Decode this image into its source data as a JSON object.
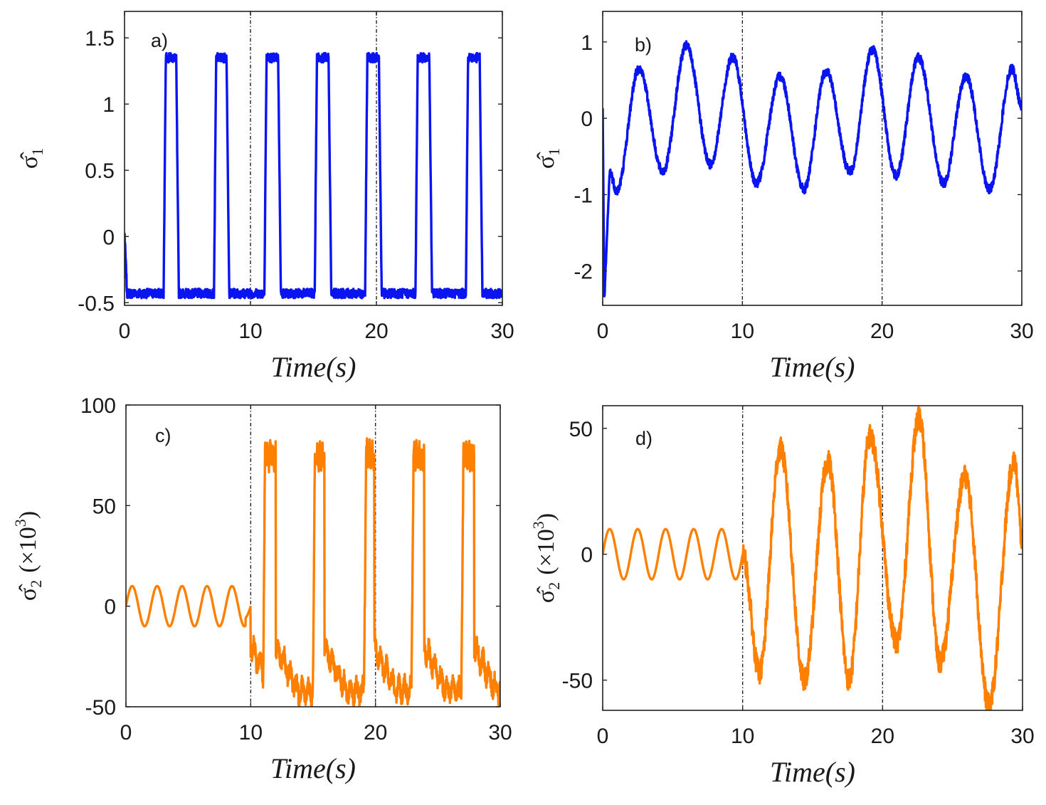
{
  "chart_data": [
    {
      "id": "a",
      "type": "line",
      "panel_label": "a)",
      "xlabel": "Time(s)",
      "ylabel": {
        "symbol": "σ̂",
        "sub": "1",
        "suffix": ""
      },
      "xlim": [
        0,
        30
      ],
      "ylim": [
        -0.52,
        1.7
      ],
      "xticks": [
        0,
        10,
        20,
        30
      ],
      "yticks": [
        -0.5,
        0,
        0.5,
        1,
        1.5
      ],
      "ytick_labels": [
        "-0.5",
        "0",
        "0.5",
        "1",
        "1.5"
      ],
      "vlines": [
        10,
        20
      ],
      "color": "#0a14f0",
      "signal": {
        "kind": "pulse",
        "base": -0.43,
        "peak": 1.35,
        "start": 0.02,
        "pulses": [
          [
            3.1,
            4.1
          ],
          [
            7.1,
            8.1
          ],
          [
            11.1,
            12.2
          ],
          [
            15.1,
            16.2
          ],
          [
            19.1,
            20.2
          ],
          [
            23.1,
            24.2
          ],
          [
            27.1,
            28.2
          ]
        ]
      },
      "series": [
        {
          "name": "σ̂1",
          "x": [
            0,
            0.2,
            3.0,
            3.2,
            4.0,
            4.2,
            7.0,
            7.2,
            8.0,
            8.2,
            11.0,
            11.2,
            12.1,
            12.3,
            15.0,
            15.2,
            16.1,
            16.3,
            19.0,
            19.2,
            20.1,
            20.3,
            23.0,
            23.2,
            24.1,
            24.3,
            27.0,
            27.2,
            28.1,
            28.3,
            30
          ],
          "y": [
            0.02,
            -0.43,
            -0.43,
            1.35,
            1.35,
            -0.43,
            -0.43,
            1.35,
            1.35,
            -0.43,
            -0.43,
            1.35,
            1.35,
            -0.43,
            -0.43,
            1.35,
            1.35,
            -0.43,
            -0.43,
            1.35,
            1.35,
            -0.43,
            -0.43,
            1.35,
            1.35,
            -0.43,
            -0.43,
            1.35,
            1.35,
            -0.43,
            -0.43
          ]
        }
      ]
    },
    {
      "id": "b",
      "type": "line",
      "panel_label": "b)",
      "xlabel": "Time(s)",
      "ylabel": {
        "symbol": "σ̂",
        "sub": "1",
        "suffix": ""
      },
      "xlim": [
        0,
        30
      ],
      "ylim": [
        -2.45,
        1.4
      ],
      "xticks": [
        0,
        10,
        20,
        30
      ],
      "yticks": [
        -2,
        -1,
        0,
        1
      ],
      "ytick_labels": [
        "-2",
        "-1",
        "0",
        "1"
      ],
      "vlines": [
        10,
        20
      ],
      "color": "#0a14f0",
      "signal": {
        "kind": "wave",
        "period": 3.35,
        "phase": 1.5,
        "peaks": [
          [
            2.6,
            0.65
          ],
          [
            6.0,
            0.95
          ],
          [
            9.3,
            0.8
          ],
          [
            12.7,
            0.55
          ],
          [
            16.0,
            0.62
          ],
          [
            19.3,
            0.9
          ],
          [
            22.6,
            0.8
          ],
          [
            26.0,
            0.55
          ],
          [
            29.3,
            0.65
          ]
        ],
        "troughs": [
          [
            4.3,
            -0.7
          ],
          [
            7.7,
            -0.6
          ],
          [
            11.0,
            -0.85
          ],
          [
            14.4,
            -0.93
          ],
          [
            17.7,
            -0.7
          ],
          [
            21.0,
            -0.75
          ],
          [
            24.4,
            -0.85
          ],
          [
            27.7,
            -0.93
          ]
        ]
      },
      "series": [
        {
          "name": "σ̂1",
          "x": [
            0,
            0.1,
            0.5,
            1.0,
            2.6,
            4.3,
            6.0,
            7.7,
            9.3,
            11.0,
            12.7,
            14.4,
            16.0,
            17.7,
            19.3,
            21.0,
            22.6,
            24.4,
            26.0,
            27.7,
            29.3,
            30
          ],
          "y": [
            0.1,
            -2.4,
            -0.7,
            -0.95,
            0.65,
            -0.7,
            0.95,
            -0.6,
            0.8,
            -0.85,
            0.55,
            -0.93,
            0.62,
            -0.7,
            0.9,
            -0.75,
            0.8,
            -0.85,
            0.55,
            -0.93,
            0.65,
            0.15
          ]
        }
      ]
    },
    {
      "id": "c",
      "type": "line",
      "panel_label": "c)",
      "xlabel": "Time(s)",
      "ylabel": {
        "symbol": "σ̂",
        "sub": "2",
        "suffix": "(×10",
        "sup": "3",
        "close": ")"
      },
      "xlim": [
        0,
        30
      ],
      "ylim": [
        -50,
        100
      ],
      "xticks": [
        0,
        10,
        20,
        30
      ],
      "yticks": [
        -50,
        0,
        50,
        100
      ],
      "ytick_labels": [
        "-50",
        "0",
        "50",
        "100"
      ],
      "vlines": [
        10,
        20
      ],
      "color": "#ff8000",
      "signal": {
        "kind": "sine_then_pulse",
        "switch": 10,
        "amp": 10,
        "period": 2.0,
        "base": -35,
        "peak": 75,
        "pulses": [
          [
            11.0,
            12.0
          ],
          [
            15.0,
            15.9
          ],
          [
            19.1,
            19.9
          ],
          [
            22.9,
            23.9
          ],
          [
            26.9,
            27.9
          ]
        ]
      },
      "series": [
        {
          "name": "σ̂2",
          "x": [
            0,
            0.5,
            1.5,
            2.5,
            3.5,
            4.5,
            5.5,
            6.5,
            7.5,
            8.5,
            9.5,
            10.0,
            11.0,
            11.2,
            12.0,
            12.3,
            14.0,
            15.0,
            15.9,
            16.2,
            18.0,
            19.1,
            19.9,
            20.2,
            22.0,
            22.9,
            23.9,
            24.2,
            26.0,
            26.9,
            27.9,
            28.2,
            30
          ],
          "y": [
            0,
            10,
            -10,
            10,
            -10,
            10,
            -10,
            10,
            -10,
            10,
            -10,
            -5,
            -30,
            70,
            78,
            -20,
            -45,
            -30,
            75,
            -20,
            -45,
            -30,
            78,
            -20,
            -40,
            -30,
            75,
            -20,
            -40,
            -30,
            75,
            -25,
            -40
          ]
        }
      ]
    },
    {
      "id": "d",
      "type": "line",
      "panel_label": "d)",
      "xlabel": "Time(s)",
      "ylabel": {
        "symbol": "σ̂",
        "sub": "2",
        "suffix": "(×10",
        "sup": "3",
        "close": ")"
      },
      "xlim": [
        0,
        30
      ],
      "ylim": [
        -62,
        59
      ],
      "xticks": [
        0,
        10,
        20,
        30
      ],
      "yticks": [
        -50,
        0,
        50
      ],
      "ytick_labels": [
        "-50",
        "0",
        "50"
      ],
      "vlines": [
        10,
        20
      ],
      "color": "#ff8000",
      "signal": {
        "kind": "sine_then_wave",
        "switch": 10,
        "amp": 10,
        "period": 2.0,
        "peaks": [
          [
            12.7,
            42
          ],
          [
            16.1,
            37
          ],
          [
            19.1,
            47
          ],
          [
            22.6,
            54
          ],
          [
            25.9,
            31
          ],
          [
            29.4,
            37
          ]
        ],
        "troughs": [
          [
            11.2,
            -47
          ],
          [
            14.4,
            -50
          ],
          [
            17.6,
            -50
          ],
          [
            21.0,
            -35
          ],
          [
            24.1,
            -43
          ],
          [
            27.6,
            -60
          ]
        ]
      },
      "series": [
        {
          "name": "σ̂2",
          "x": [
            0,
            0.5,
            1.5,
            2.5,
            3.5,
            4.5,
            5.5,
            6.5,
            7.5,
            8.5,
            9.5,
            10.0,
            11.2,
            12.7,
            14.4,
            16.1,
            17.6,
            19.1,
            21.0,
            22.6,
            24.1,
            25.9,
            27.6,
            29.4,
            30
          ],
          "y": [
            0,
            10,
            -10,
            10,
            -10,
            10,
            -10,
            10,
            -10,
            10,
            -10,
            0,
            -47,
            42,
            -50,
            37,
            -50,
            47,
            -35,
            54,
            -43,
            31,
            -60,
            37,
            5
          ]
        }
      ]
    }
  ]
}
